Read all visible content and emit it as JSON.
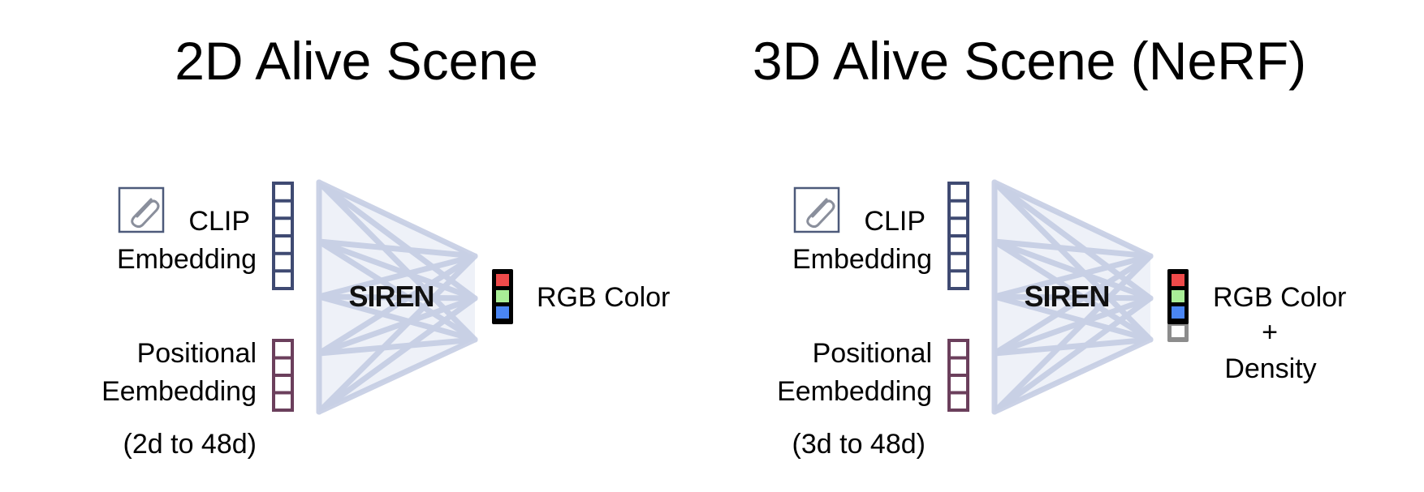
{
  "panels": [
    {
      "title": "2D Alive Scene",
      "clip_label_line1": "CLIP",
      "clip_label_line2": "Embedding",
      "pos_label_line1": "Positional",
      "pos_label_line2": "Eembedding",
      "dim_note": "(2d to 48d)",
      "network_label": "SIREN",
      "output_line1": "RGB Color",
      "output_line2": "",
      "output_line3": "",
      "has_density": false
    },
    {
      "title": "3D Alive Scene (NeRF)",
      "clip_label_line1": "CLIP",
      "clip_label_line2": "Embedding",
      "pos_label_line1": "Positional",
      "pos_label_line2": "Eembedding",
      "dim_note": "(3d to 48d)",
      "network_label": "SIREN",
      "output_line1": "RGB Color",
      "output_line2": "+",
      "output_line3": "Density",
      "has_density": true
    }
  ],
  "colors": {
    "clip_vector": "#3f4a72",
    "pos_vector": "#6b3f5c",
    "network": "#b9c3dd",
    "output_red": "#ef4a4a",
    "output_green": "#a9ee97",
    "output_blue": "#4a86f4",
    "density_cell": "#8c8c8c"
  }
}
